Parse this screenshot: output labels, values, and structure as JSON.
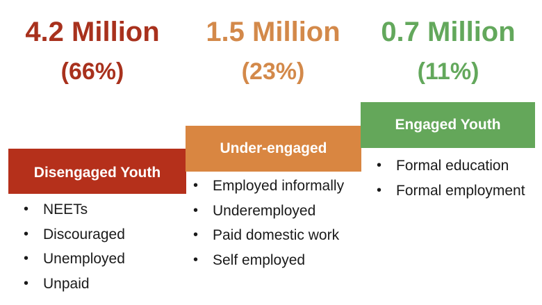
{
  "colors": {
    "disengaged": "#b5301b",
    "under_engaged": "#d98641",
    "engaged": "#64a75a"
  },
  "groups": [
    {
      "count": "4.2 Million",
      "share": "(66%)",
      "heading": "Disengaged Youth",
      "items": [
        "NEETs",
        "Discouraged",
        "Unemployed",
        "Unpaid"
      ]
    },
    {
      "count": "1.5 Million",
      "share": "(23%)",
      "heading": "Under-engaged",
      "items": [
        "Employed informally",
        "Underemployed",
        "Paid domestic work",
        "Self employed"
      ]
    },
    {
      "count": "0.7 Million",
      "share": "(11%)",
      "heading": "Engaged Youth",
      "items": [
        "Formal education",
        "Formal employment"
      ]
    }
  ]
}
